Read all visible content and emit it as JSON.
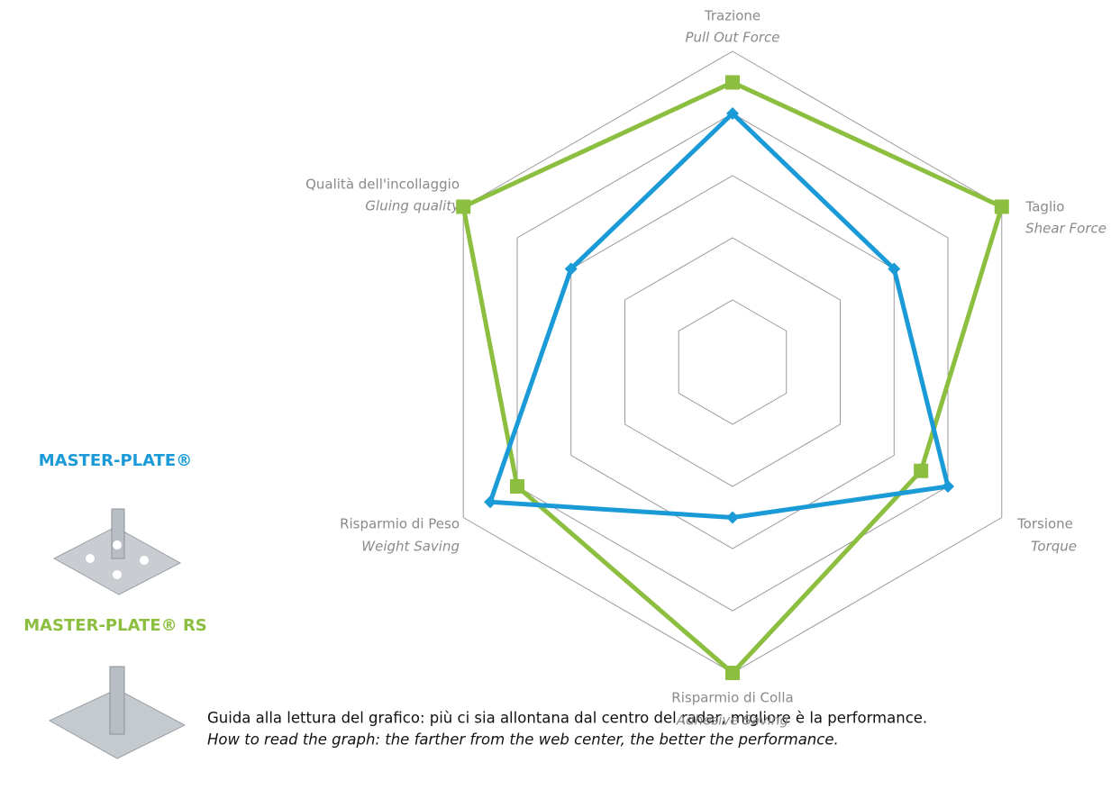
{
  "chart_data": {
    "type": "radar",
    "categories": [
      "Trazione",
      "Taglio",
      "Torsione",
      "Risparmio di Colla",
      "Risparmio di Peso",
      "Qualità dell'incollaggio"
    ],
    "categories_en": [
      "Pull Out Force",
      "Shear Force",
      "Torque",
      "Adhesive Saving",
      "Weight Saving",
      "Gluing quality"
    ],
    "rlim": [
      0,
      5
    ],
    "rticks": [
      1,
      2,
      3,
      4,
      5
    ],
    "grid": true,
    "series": [
      {
        "name": "MASTER-PLATE®",
        "color": "#1a9ad6",
        "marker": "diamond",
        "values": [
          4,
          3,
          4,
          2.5,
          4.5,
          3
        ]
      },
      {
        "name": "MASTER-PLATE® RS",
        "color": "#8cbe3f",
        "marker": "square",
        "values": [
          4.5,
          5,
          3.5,
          5,
          4,
          5
        ]
      }
    ],
    "note": [
      "Guida alla lettura del grafico: più ci sia allontana dal centro del radar, migliore è la performance.",
      "How to read the graph: the farther from the web center, the better the performance."
    ]
  }
}
